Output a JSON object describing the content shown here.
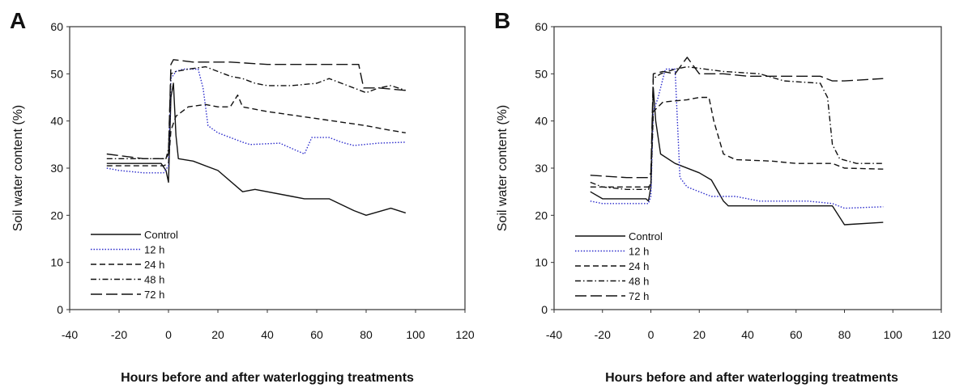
{
  "chart_data": [
    {
      "panel": "A",
      "type": "line",
      "xlabel": "Hours before and after waterlogging treatments",
      "ylabel": "Soil water content (%)",
      "xlim": [
        -40,
        120
      ],
      "ylim": [
        0,
        60
      ],
      "xticks": [
        -40,
        -20,
        0,
        20,
        40,
        60,
        80,
        100,
        120
      ],
      "yticks": [
        0,
        10,
        20,
        30,
        40,
        50,
        60
      ],
      "legend_position": "bottom-left",
      "series": [
        {
          "name": "Control",
          "color": "#111111",
          "dash": "solid",
          "points": [
            [
              -25,
              31
            ],
            [
              -15,
              31
            ],
            [
              -3,
              31
            ],
            [
              -1,
              29.5
            ],
            [
              0,
              27
            ],
            [
              1,
              45
            ],
            [
              2,
              48
            ],
            [
              3,
              37
            ],
            [
              4,
              32
            ],
            [
              10,
              31.5
            ],
            [
              20,
              29.5
            ],
            [
              30,
              25
            ],
            [
              35,
              25.5
            ],
            [
              50,
              24
            ],
            [
              55,
              23.5
            ],
            [
              65,
              23.5
            ],
            [
              75,
              21
            ],
            [
              80,
              20
            ],
            [
              90,
              21.5
            ],
            [
              96,
              20.5
            ]
          ]
        },
        {
          "name": "12 h",
          "color": "#2d2dcc",
          "dash": "1.5,2",
          "points": [
            [
              -25,
              30
            ],
            [
              -20,
              29.5
            ],
            [
              -10,
              29
            ],
            [
              -2,
              29
            ],
            [
              0,
              30.5
            ],
            [
              1,
              49
            ],
            [
              3,
              50.5
            ],
            [
              6,
              51
            ],
            [
              12,
              51
            ],
            [
              14,
              47
            ],
            [
              16,
              39
            ],
            [
              20,
              37.5
            ],
            [
              30,
              35.5
            ],
            [
              33,
              35
            ],
            [
              45,
              35.3
            ],
            [
              55,
              33
            ],
            [
              58,
              36.5
            ],
            [
              65,
              36.5
            ],
            [
              70,
              35.5
            ],
            [
              75,
              34.8
            ],
            [
              85,
              35.3
            ],
            [
              96,
              35.5
            ]
          ]
        },
        {
          "name": "24 h",
          "color": "#111111",
          "dash": "7,4",
          "points": [
            [
              -25,
              30.5
            ],
            [
              -10,
              30.5
            ],
            [
              -2,
              30.5
            ],
            [
              0,
              31
            ],
            [
              1,
              38
            ],
            [
              3,
              41
            ],
            [
              8,
              43
            ],
            [
              15,
              43.5
            ],
            [
              20,
              43
            ],
            [
              25,
              43
            ],
            [
              28,
              45.5
            ],
            [
              30,
              43
            ],
            [
              40,
              42
            ],
            [
              60,
              40.5
            ],
            [
              80,
              39
            ],
            [
              90,
              38
            ],
            [
              96,
              37.5
            ]
          ]
        },
        {
          "name": "48 h",
          "color": "#111111",
          "dash": "7,3,1.5,3",
          "points": [
            [
              -25,
              32
            ],
            [
              -10,
              32
            ],
            [
              -2,
              32
            ],
            [
              -1,
              32
            ],
            [
              0,
              34
            ],
            [
              1,
              50
            ],
            [
              3,
              50.5
            ],
            [
              8,
              51
            ],
            [
              15,
              51.5
            ],
            [
              25,
              49.5
            ],
            [
              30,
              49
            ],
            [
              35,
              48
            ],
            [
              40,
              47.5
            ],
            [
              50,
              47.5
            ],
            [
              60,
              48
            ],
            [
              65,
              49
            ],
            [
              70,
              48
            ],
            [
              75,
              47
            ],
            [
              80,
              46
            ],
            [
              85,
              47
            ],
            [
              90,
              47.5
            ],
            [
              96,
              46.5
            ]
          ]
        },
        {
          "name": "72 h",
          "color": "#111111",
          "dash": "14,5",
          "points": [
            [
              -25,
              33
            ],
            [
              -10,
              32
            ],
            [
              -1,
              32
            ],
            [
              0,
              33
            ],
            [
              1,
              52
            ],
            [
              2,
              53
            ],
            [
              10,
              52.5
            ],
            [
              25,
              52.5
            ],
            [
              40,
              52
            ],
            [
              60,
              52
            ],
            [
              77,
              52
            ],
            [
              79,
              47
            ],
            [
              85,
              47
            ],
            [
              96,
              46.5
            ]
          ]
        }
      ]
    },
    {
      "panel": "B",
      "type": "line",
      "xlabel": "Hours before and after waterlogging treatments",
      "ylabel": "Soil water content (%)",
      "xlim": [
        -40,
        120
      ],
      "ylim": [
        0,
        60
      ],
      "xticks": [
        -40,
        -20,
        0,
        20,
        40,
        60,
        80,
        100,
        120
      ],
      "yticks": [
        0,
        10,
        20,
        30,
        40,
        50,
        60
      ],
      "legend_position": "bottom-left",
      "series": [
        {
          "name": "Control",
          "color": "#111111",
          "dash": "solid",
          "points": [
            [
              -25,
              25
            ],
            [
              -20,
              23.5
            ],
            [
              -10,
              23.5
            ],
            [
              -2,
              23.5
            ],
            [
              -1,
              23
            ],
            [
              0,
              26
            ],
            [
              1,
              47
            ],
            [
              2,
              40
            ],
            [
              4,
              33
            ],
            [
              10,
              31
            ],
            [
              20,
              29
            ],
            [
              25,
              27.5
            ],
            [
              30,
              23
            ],
            [
              32,
              22
            ],
            [
              40,
              22
            ],
            [
              60,
              22
            ],
            [
              75,
              22
            ],
            [
              80,
              18
            ],
            [
              96,
              18.5
            ]
          ]
        },
        {
          "name": "12 h",
          "color": "#2d2dcc",
          "dash": "1.5,2",
          "points": [
            [
              -25,
              23
            ],
            [
              -20,
              22.5
            ],
            [
              -5,
              22.5
            ],
            [
              -1,
              22.5
            ],
            [
              0,
              24
            ],
            [
              1,
              42
            ],
            [
              3,
              45
            ],
            [
              6,
              51
            ],
            [
              10,
              51
            ],
            [
              12,
              28
            ],
            [
              15,
              26
            ],
            [
              25,
              24
            ],
            [
              35,
              24
            ],
            [
              45,
              23
            ],
            [
              55,
              23
            ],
            [
              65,
              23
            ],
            [
              75,
              22.5
            ],
            [
              80,
              21.5
            ],
            [
              96,
              21.8
            ]
          ]
        },
        {
          "name": "24 h",
          "color": "#111111",
          "dash": "7,4",
          "points": [
            [
              -25,
              26
            ],
            [
              -15,
              26
            ],
            [
              -1,
              26
            ],
            [
              0,
              26.5
            ],
            [
              1,
              42
            ],
            [
              5,
              44
            ],
            [
              15,
              44.5
            ],
            [
              20,
              45
            ],
            [
              24,
              45
            ],
            [
              26,
              40
            ],
            [
              30,
              33
            ],
            [
              35,
              31.8
            ],
            [
              50,
              31.5
            ],
            [
              60,
              31
            ],
            [
              75,
              31
            ],
            [
              80,
              30
            ],
            [
              96,
              29.8
            ]
          ]
        },
        {
          "name": "48 h",
          "color": "#111111",
          "dash": "7,3,1.5,3",
          "points": [
            [
              -25,
              27
            ],
            [
              -20,
              26
            ],
            [
              -10,
              25.5
            ],
            [
              -1,
              25.5
            ],
            [
              0,
              27
            ],
            [
              1,
              49
            ],
            [
              4,
              50
            ],
            [
              10,
              51
            ],
            [
              15,
              51.5
            ],
            [
              30,
              50.5
            ],
            [
              45,
              50
            ],
            [
              55,
              48.5
            ],
            [
              70,
              48
            ],
            [
              73,
              45
            ],
            [
              75,
              35
            ],
            [
              78,
              32
            ],
            [
              85,
              31
            ],
            [
              96,
              31
            ]
          ]
        },
        {
          "name": "72 h",
          "color": "#111111",
          "dash": "14,5",
          "points": [
            [
              -25,
              28.5
            ],
            [
              -10,
              28
            ],
            [
              -1,
              28
            ],
            [
              0,
              29
            ],
            [
              1,
              50
            ],
            [
              5,
              50.5
            ],
            [
              10,
              50
            ],
            [
              15,
              53.5
            ],
            [
              20,
              50
            ],
            [
              30,
              50
            ],
            [
              40,
              49.5
            ],
            [
              50,
              49.5
            ],
            [
              70,
              49.5
            ],
            [
              75,
              48.5
            ],
            [
              80,
              48.5
            ],
            [
              96,
              49
            ]
          ]
        }
      ]
    }
  ]
}
